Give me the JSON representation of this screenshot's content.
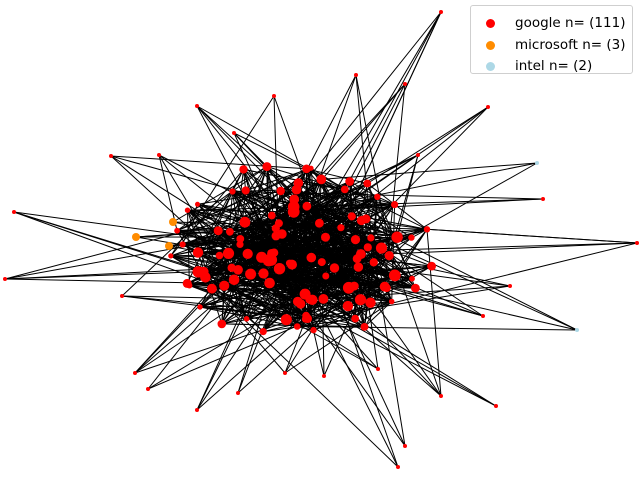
{
  "legend": [
    {
      "label": "google n= (111)",
      "color": "#ff0000"
    },
    {
      "label": "microsoft n= (3)",
      "color": "#ff8c00"
    },
    {
      "label": "intel n= (2)",
      "color": "#add8e6"
    }
  ],
  "edge_color": "#000000"
}
